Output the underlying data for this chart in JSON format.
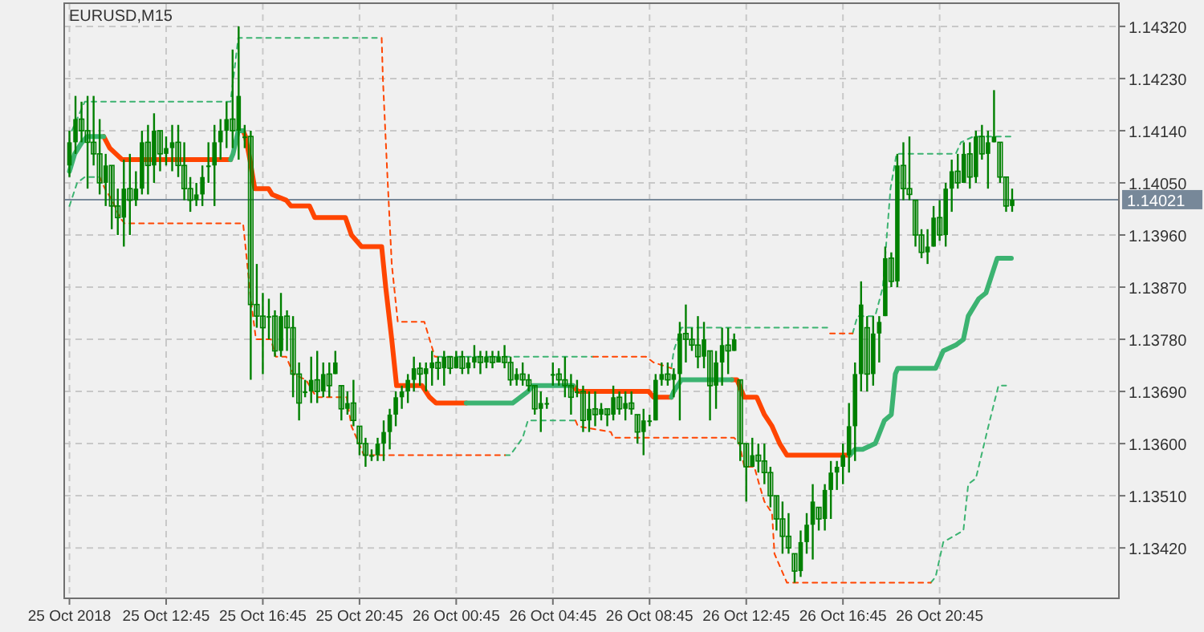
{
  "chart_data": {
    "type": "candlestick",
    "title": "EURUSD,M15",
    "color": "#008000",
    "x": [
      "2018-10-25T08:45",
      "2018-10-25T09:00",
      "2018-10-25T09:15",
      "2018-10-25T09:30",
      "2018-10-25T09:45",
      "2018-10-25T10:00",
      "2018-10-25T10:15",
      "2018-10-25T10:30",
      "2018-10-25T10:45",
      "2018-10-25T11:00",
      "2018-10-25T11:15",
      "2018-10-25T11:30",
      "2018-10-25T11:45",
      "2018-10-25T12:00",
      "2018-10-25T12:15",
      "2018-10-25T12:30",
      "2018-10-25T12:45",
      "2018-10-25T13:00",
      "2018-10-25T13:15",
      "2018-10-25T13:30",
      "2018-10-25T13:45",
      "2018-10-25T14:00",
      "2018-10-25T14:15",
      "2018-10-25T14:30",
      "2018-10-25T14:45",
      "2018-10-25T15:00",
      "2018-10-25T15:15",
      "2018-10-25T15:30",
      "2018-10-25T15:45",
      "2018-10-25T16:00",
      "2018-10-25T16:15",
      "2018-10-25T16:30",
      "2018-10-25T16:45",
      "2018-10-25T17:00",
      "2018-10-25T17:15",
      "2018-10-25T17:30",
      "2018-10-25T17:45",
      "2018-10-25T18:00",
      "2018-10-25T18:15",
      "2018-10-25T18:30",
      "2018-10-25T18:45",
      "2018-10-25T19:00",
      "2018-10-25T19:15",
      "2018-10-25T19:30",
      "2018-10-25T19:45",
      "2018-10-25T20:00",
      "2018-10-25T20:15",
      "2018-10-25T20:30",
      "2018-10-25T20:45",
      "2018-10-25T21:00",
      "2018-10-25T21:15",
      "2018-10-25T21:30",
      "2018-10-25T21:45",
      "2018-10-25T22:00",
      "2018-10-25T22:15",
      "2018-10-25T22:30",
      "2018-10-25T22:45",
      "2018-10-25T23:00",
      "2018-10-25T23:15",
      "2018-10-25T23:30",
      "2018-10-25T23:45",
      "2018-10-26T00:00",
      "2018-10-26T00:15",
      "2018-10-26T00:30",
      "2018-10-26T00:45",
      "2018-10-26T01:00",
      "2018-10-26T01:15",
      "2018-10-26T01:30",
      "2018-10-26T01:45",
      "2018-10-26T02:00",
      "2018-10-26T02:15",
      "2018-10-26T02:30",
      "2018-10-26T02:45",
      "2018-10-26T03:00",
      "2018-10-26T03:15",
      "2018-10-26T03:30",
      "2018-10-26T03:45",
      "2018-10-26T04:00",
      "2018-10-26T04:15",
      "2018-10-26T04:30",
      "2018-10-26T04:45",
      "2018-10-26T05:00",
      "2018-10-26T05:15",
      "2018-10-26T05:30",
      "2018-10-26T05:45",
      "2018-10-26T06:00",
      "2018-10-26T06:15",
      "2018-10-26T06:30",
      "2018-10-26T06:45",
      "2018-10-26T07:00",
      "2018-10-26T07:15",
      "2018-10-26T07:30",
      "2018-10-26T07:45",
      "2018-10-26T08:00",
      "2018-10-26T08:15",
      "2018-10-26T08:30",
      "2018-10-26T08:45",
      "2018-10-26T09:00",
      "2018-10-26T09:15",
      "2018-10-26T09:30",
      "2018-10-26T09:45",
      "2018-10-26T10:00",
      "2018-10-26T10:15",
      "2018-10-26T10:30",
      "2018-10-26T10:45",
      "2018-10-26T11:00",
      "2018-10-26T11:15",
      "2018-10-26T11:30",
      "2018-10-26T11:45",
      "2018-10-26T12:00",
      "2018-10-26T12:15",
      "2018-10-26T12:30",
      "2018-10-26T12:45",
      "2018-10-26T13:00",
      "2018-10-26T13:15",
      "2018-10-26T13:30",
      "2018-10-26T13:45",
      "2018-10-26T14:00",
      "2018-10-26T14:15",
      "2018-10-26T14:30",
      "2018-10-26T14:45",
      "2018-10-26T15:00",
      "2018-10-26T15:15",
      "2018-10-26T15:30",
      "2018-10-26T15:45",
      "2018-10-26T16:00",
      "2018-10-26T16:15",
      "2018-10-26T16:30",
      "2018-10-26T16:45",
      "2018-10-26T17:00",
      "2018-10-26T17:15",
      "2018-10-26T17:30",
      "2018-10-26T17:45",
      "2018-10-26T18:00",
      "2018-10-26T18:15",
      "2018-10-26T18:30",
      "2018-10-26T18:45",
      "2018-10-26T19:00",
      "2018-10-26T19:15",
      "2018-10-26T19:30",
      "2018-10-26T19:45",
      "2018-10-26T20:00",
      "2018-10-26T20:15",
      "2018-10-26T20:30",
      "2018-10-26T20:45",
      "2018-10-26T21:00",
      "2018-10-26T21:15",
      "2018-10-26T21:30",
      "2018-10-26T21:45",
      "2018-10-26T22:00",
      "2018-10-26T22:15",
      "2018-10-26T22:30",
      "2018-10-26T22:45",
      "2018-10-26T23:00",
      "2018-10-26T23:15",
      "2018-10-26T23:30",
      "2018-10-26T23:45"
    ],
    "ohlc": [
      [
        1.1408,
        1.1414,
        1.1406,
        1.1412
      ],
      [
        1.1412,
        1.142,
        1.141,
        1.1416
      ],
      [
        1.1416,
        1.1419,
        1.1412,
        1.1414
      ],
      [
        1.1414,
        1.142,
        1.1404,
        1.1412
      ],
      [
        1.1412,
        1.142,
        1.1408,
        1.141
      ],
      [
        1.141,
        1.1416,
        1.1403,
        1.1405
      ],
      [
        1.1405,
        1.141,
        1.1401,
        1.1408
      ],
      [
        1.1408,
        1.1408,
        1.1397,
        1.1401
      ],
      [
        1.1401,
        1.1404,
        1.1396,
        1.1399
      ],
      [
        1.1399,
        1.1409,
        1.1394,
        1.1404
      ],
      [
        1.1404,
        1.141,
        1.1396,
        1.1402
      ],
      [
        1.1402,
        1.1407,
        1.1401,
        1.1404
      ],
      [
        1.1404,
        1.1414,
        1.1403,
        1.1412
      ],
      [
        1.1412,
        1.1415,
        1.1403,
        1.1408
      ],
      [
        1.1408,
        1.1417,
        1.1405,
        1.1414
      ],
      [
        1.1414,
        1.1414,
        1.1407,
        1.141
      ],
      [
        1.141,
        1.1413,
        1.1408,
        1.1411
      ],
      [
        1.1411,
        1.1415,
        1.1407,
        1.1412
      ],
      [
        1.1412,
        1.1415,
        1.1406,
        1.1408
      ],
      [
        1.1408,
        1.1412,
        1.1402,
        1.1404
      ],
      [
        1.1404,
        1.1406,
        1.14,
        1.1402
      ],
      [
        1.1402,
        1.1405,
        1.1401,
        1.1403
      ],
      [
        1.1403,
        1.1408,
        1.1401,
        1.1406
      ],
      [
        1.1408,
        1.1412,
        1.1405,
        1.1408
      ],
      [
        1.1408,
        1.1415,
        1.1401,
        1.1412
      ],
      [
        1.1412,
        1.1416,
        1.1409,
        1.1414
      ],
      [
        1.1414,
        1.1419,
        1.1411,
        1.1416
      ],
      [
        1.1416,
        1.1428,
        1.1411,
        1.1414
      ],
      [
        1.1414,
        1.1432,
        1.1409,
        1.142
      ],
      [
        1.1413,
        1.1415,
        1.1411,
        1.1413
      ],
      [
        1.1413,
        1.1414,
        1.1371,
        1.1384
      ],
      [
        1.1384,
        1.1391,
        1.138,
        1.1382
      ],
      [
        1.1382,
        1.1386,
        1.1372,
        1.138
      ],
      [
        1.1382,
        1.1385,
        1.1378,
        1.1382
      ],
      [
        1.1382,
        1.1383,
        1.1375,
        1.1376
      ],
      [
        1.1376,
        1.1386,
        1.1375,
        1.1382
      ],
      [
        1.1382,
        1.1383,
        1.1376,
        1.138
      ],
      [
        1.138,
        1.1382,
        1.1368,
        1.1372
      ],
      [
        1.1372,
        1.1374,
        1.1364,
        1.1367
      ],
      [
        1.1369,
        1.1371,
        1.1368,
        1.1369
      ],
      [
        1.1369,
        1.1375,
        1.1367,
        1.1371
      ],
      [
        1.1371,
        1.1376,
        1.1367,
        1.1369
      ],
      [
        1.1369,
        1.1374,
        1.1368,
        1.1372
      ],
      [
        1.1372,
        1.1374,
        1.1368,
        1.137
      ],
      [
        1.1372,
        1.1376,
        1.1372,
        1.1374
      ],
      [
        1.137,
        1.137,
        1.1364,
        1.1366
      ],
      [
        1.1366,
        1.1369,
        1.1365,
        1.1367
      ],
      [
        1.1367,
        1.1371,
        1.1363,
        1.1364
      ],
      [
        1.1363,
        1.1363,
        1.1358,
        1.136
      ],
      [
        1.136,
        1.1361,
        1.1356,
        1.1358
      ],
      [
        1.1358,
        1.1359,
        1.1357,
        1.1358
      ],
      [
        1.1358,
        1.1361,
        1.1357,
        1.136
      ],
      [
        1.136,
        1.1364,
        1.1357,
        1.1362
      ],
      [
        1.1362,
        1.1366,
        1.1359,
        1.1365
      ],
      [
        1.1365,
        1.1369,
        1.1363,
        1.1368
      ],
      [
        1.1368,
        1.137,
        1.1366,
        1.1369
      ],
      [
        1.1369,
        1.1372,
        1.1367,
        1.1371
      ],
      [
        1.1371,
        1.1375,
        1.1369,
        1.1373
      ],
      [
        1.1373,
        1.1374,
        1.137,
        1.1372
      ],
      [
        1.1372,
        1.1374,
        1.1369,
        1.1373
      ],
      [
        1.1373,
        1.1376,
        1.137,
        1.1374
      ],
      [
        1.1374,
        1.1375,
        1.1371,
        1.1373
      ],
      [
        1.1373,
        1.1376,
        1.137,
        1.1375
      ],
      [
        1.1375,
        1.1375,
        1.1372,
        1.1373
      ],
      [
        1.1373,
        1.1376,
        1.1373,
        1.1375
      ],
      [
        1.1375,
        1.1376,
        1.1372,
        1.1373
      ],
      [
        1.1373,
        1.1375,
        1.1372,
        1.1374
      ],
      [
        1.1374,
        1.1377,
        1.1373,
        1.1375
      ],
      [
        1.1375,
        1.1376,
        1.1372,
        1.1374
      ],
      [
        1.1374,
        1.1376,
        1.1373,
        1.1375
      ],
      [
        1.1375,
        1.1376,
        1.1373,
        1.1374
      ],
      [
        1.1374,
        1.1376,
        1.1374,
        1.1375
      ],
      [
        1.1375,
        1.1377,
        1.1373,
        1.1374
      ],
      [
        1.1374,
        1.1375,
        1.137,
        1.1371
      ],
      [
        1.1371,
        1.1373,
        1.137,
        1.1372
      ],
      [
        1.1372,
        1.1374,
        1.137,
        1.1371
      ],
      [
        1.1371,
        1.1372,
        1.1369,
        1.137
      ],
      [
        1.137,
        1.137,
        1.1365,
        1.1366
      ],
      [
        1.1366,
        1.1369,
        1.1362,
        1.1367
      ],
      [
        1.1367,
        1.1368,
        1.1366,
        1.1367
      ],
      [
        1.1372,
        1.1374,
        1.137,
        1.1372
      ],
      [
        1.1372,
        1.1373,
        1.137,
        1.1371
      ],
      [
        1.1371,
        1.1375,
        1.1368,
        1.137
      ],
      [
        1.137,
        1.1372,
        1.1365,
        1.1368
      ],
      [
        1.1369,
        1.1371,
        1.1368,
        1.1369
      ],
      [
        1.1369,
        1.137,
        1.1362,
        1.1364
      ],
      [
        1.1364,
        1.1369,
        1.1362,
        1.1366
      ],
      [
        1.1366,
        1.1369,
        1.1363,
        1.1365
      ],
      [
        1.1365,
        1.1367,
        1.1364,
        1.1366
      ],
      [
        1.1366,
        1.1366,
        1.1363,
        1.1365
      ],
      [
        1.1365,
        1.137,
        1.1364,
        1.1368
      ],
      [
        1.1368,
        1.1369,
        1.1365,
        1.1366
      ],
      [
        1.1366,
        1.1369,
        1.1364,
        1.1367
      ],
      [
        1.1367,
        1.1369,
        1.1365,
        1.1366
      ],
      [
        1.1365,
        1.1365,
        1.136,
        1.1362
      ],
      [
        1.1362,
        1.1366,
        1.1358,
        1.1364
      ],
      [
        1.1364,
        1.1365,
        1.1363,
        1.1364
      ],
      [
        1.1364,
        1.1372,
        1.1364,
        1.1371
      ],
      [
        1.1371,
        1.1374,
        1.137,
        1.1372
      ],
      [
        1.1372,
        1.1374,
        1.137,
        1.1371
      ],
      [
        1.1371,
        1.1373,
        1.1368,
        1.1372
      ],
      [
        1.1372,
        1.1381,
        1.1364,
        1.1379
      ],
      [
        1.1379,
        1.1384,
        1.1374,
        1.1378
      ],
      [
        1.1378,
        1.138,
        1.1376,
        1.1377
      ],
      [
        1.1377,
        1.1382,
        1.1373,
        1.1375
      ],
      [
        1.1375,
        1.1381,
        1.1373,
        1.1378
      ],
      [
        1.1376,
        1.1376,
        1.1364,
        1.137
      ],
      [
        1.137,
        1.1376,
        1.1366,
        1.1374
      ],
      [
        1.1374,
        1.138,
        1.137,
        1.1377
      ],
      [
        1.1377,
        1.138,
        1.1372,
        1.1376
      ],
      [
        1.1376,
        1.1379,
        1.1376,
        1.1378
      ],
      [
        1.1371,
        1.1371,
        1.1357,
        1.136
      ],
      [
        1.136,
        1.136,
        1.135,
        1.1356
      ],
      [
        1.1356,
        1.1361,
        1.1356,
        1.1358
      ],
      [
        1.1358,
        1.136,
        1.1355,
        1.1357
      ],
      [
        1.1357,
        1.136,
        1.1353,
        1.1355
      ],
      [
        1.1355,
        1.1356,
        1.1349,
        1.1351
      ],
      [
        1.1351,
        1.1351,
        1.1345,
        1.1347
      ],
      [
        1.1347,
        1.135,
        1.1341,
        1.1344
      ],
      [
        1.1344,
        1.1348,
        1.1341,
        1.1342
      ],
      [
        1.1341,
        1.1341,
        1.1336,
        1.1338
      ],
      [
        1.1338,
        1.1345,
        1.1337,
        1.1343
      ],
      [
        1.1343,
        1.1348,
        1.1341,
        1.1346
      ],
      [
        1.1346,
        1.1353,
        1.134,
        1.135
      ],
      [
        1.1349,
        1.1349,
        1.1345,
        1.1347
      ],
      [
        1.1347,
        1.1353,
        1.1345,
        1.1352
      ],
      [
        1.1352,
        1.1357,
        1.1347,
        1.1355
      ],
      [
        1.1355,
        1.1357,
        1.1352,
        1.1356
      ],
      [
        1.1356,
        1.136,
        1.1353,
        1.1358
      ],
      [
        1.1358,
        1.1367,
        1.1355,
        1.1363
      ],
      [
        1.1363,
        1.1374,
        1.1357,
        1.1372
      ],
      [
        1.1372,
        1.1388,
        1.1369,
        1.1384
      ],
      [
        1.138,
        1.1382,
        1.1369,
        1.1372
      ],
      [
        1.1372,
        1.1382,
        1.137,
        1.1379
      ],
      [
        1.1379,
        1.1382,
        1.1374,
        1.1381
      ],
      [
        1.1382,
        1.1394,
        1.1382,
        1.1392
      ],
      [
        1.1392,
        1.1393,
        1.1387,
        1.1388
      ],
      [
        1.1388,
        1.141,
        1.1387,
        1.1408
      ],
      [
        1.1408,
        1.1412,
        1.1402,
        1.1404
      ],
      [
        1.1404,
        1.1413,
        1.1402,
        1.1403
      ],
      [
        1.1402,
        1.1402,
        1.1394,
        1.1396
      ],
      [
        1.1396,
        1.1397,
        1.1392,
        1.1393
      ],
      [
        1.1393,
        1.1397,
        1.1391,
        1.1394
      ],
      [
        1.1394,
        1.1401,
        1.1394,
        1.1399
      ],
      [
        1.1399,
        1.1402,
        1.1395,
        1.1396
      ],
      [
        1.1396,
        1.1405,
        1.1394,
        1.1404
      ],
      [
        1.1404,
        1.1409,
        1.14,
        1.1407
      ],
      [
        1.1407,
        1.141,
        1.1404,
        1.1405
      ],
      [
        1.1405,
        1.1412,
        1.1405,
        1.141
      ],
      [
        1.141,
        1.1412,
        1.1404,
        1.1406
      ],
      [
        1.1406,
        1.1414,
        1.1405,
        1.1413
      ],
      [
        1.1413,
        1.1415,
        1.1409,
        1.141
      ],
      [
        1.141,
        1.1414,
        1.1404,
        1.1412
      ],
      [
        1.1412,
        1.1421,
        1.1412,
        1.1413
      ],
      [
        1.1412,
        1.1412,
        1.1405,
        1.1406
      ],
      [
        1.1406,
        1.1406,
        1.14,
        1.1401
      ],
      [
        1.1401,
        1.1404,
        1.14,
        1.14021
      ]
    ],
    "series": [
      {
        "type": "line",
        "color": "#ff4500",
        "line_style": "solid",
        "x": [
          "2018-10-25T10:10",
          "2018-10-25T10:25",
          "2018-10-25T10:56",
          "2018-10-25T15:25",
          "2018-10-25T15:36",
          "2018-10-25T15:56",
          "2018-10-25T16:02",
          "2018-10-25T16:13",
          "2018-10-25T16:25",
          "2018-10-25T16:59",
          "2018-10-25T17:08",
          "2018-10-25T17:43",
          "2018-10-25T17:55",
          "2018-10-25T18:41",
          "2018-10-25T18:54",
          "2018-10-25T20:10",
          "2018-10-25T20:25",
          "2018-10-25T20:50",
          "2018-10-25T21:40",
          "2018-10-25T21:50",
          "2018-10-25T22:05",
          "2018-10-25T22:17",
          "2018-10-25T22:30",
          "2018-10-25T23:20",
          "2018-10-25T23:39",
          "2018-10-25T23:55",
          "2018-10-26T01:10",
          "2018-10-26T03:00",
          "2018-10-26T05:35",
          "2018-10-26T05:47",
          "2018-10-26T07:02",
          "2018-10-26T08:43",
          "2018-10-26T08:55",
          "2018-10-26T09:39",
          "2018-10-26T11:00",
          "2018-10-26T12:09",
          "2018-10-26T12:22",
          "2018-10-26T12:40",
          "2018-10-26T13:11",
          "2018-10-26T13:30",
          "2018-10-26T13:49",
          "2018-10-26T14:08",
          "2018-10-26T14:26",
          "2018-10-26T16:07",
          "2018-10-26T17:02"
        ],
        "values": [
          1.1413,
          1.1411,
          1.1409,
          1.1409,
          null,
          1.1414,
          1.1413,
          1.1409,
          1.1404,
          1.1404,
          1.1403,
          1.1402,
          1.1401,
          1.1401,
          1.1399,
          1.1399,
          1.1396,
          1.1394,
          1.1394,
          1.1387,
          1.1378,
          1.137,
          1.137,
          1.137,
          1.1368,
          1.1367,
          1.1367,
          null,
          1.137,
          1.1369,
          1.1369,
          1.1369,
          1.1368,
          1.1368,
          null,
          1.1371,
          1.1371,
          1.1368,
          1.1368,
          1.1365,
          1.1363,
          1.136,
          1.1358,
          1.1358,
          1.1358
        ]
      },
      {
        "type": "line",
        "color": "#3cb371",
        "line_style": "solid",
        "x": [
          "2018-10-25T08:45",
          "2018-10-25T08:58",
          "2018-10-25T09:16",
          "2018-10-25T09:29",
          "2018-10-25T10:10",
          "2018-10-25T12:00",
          "2018-10-25T15:25",
          "2018-10-25T15:31",
          "2018-10-25T15:44",
          "2018-10-25T15:56",
          "2018-10-25T20:00",
          "2018-10-26T01:10",
          "2018-10-26T03:05",
          "2018-10-26T03:24",
          "2018-10-26T03:43",
          "2018-10-26T03:55",
          "2018-10-26T05:35",
          "2018-10-26T07:00",
          "2018-10-26T09:39",
          "2018-10-26T09:45",
          "2018-10-26T10:04",
          "2018-10-26T12:09",
          "2018-10-26T14:00",
          "2018-10-26T17:02",
          "2018-10-26T17:15",
          "2018-10-26T17:34",
          "2018-10-26T18:05",
          "2018-10-26T18:11",
          "2018-10-26T18:28",
          "2018-10-26T18:45",
          "2018-10-26T18:55",
          "2018-10-26T19:01",
          "2018-10-26T20:35",
          "2018-10-26T20:54",
          "2018-10-26T21:25",
          "2018-10-26T21:44",
          "2018-10-26T21:56",
          "2018-10-26T22:22",
          "2018-10-26T22:40",
          "2018-10-26T23:08",
          "2018-10-26T23:43"
        ],
        "values": [
          1.1407,
          1.141,
          1.1412,
          1.1413,
          1.1413,
          null,
          1.1409,
          1.141,
          1.1414,
          1.1414,
          null,
          1.1367,
          1.1367,
          1.1368,
          1.1369,
          1.137,
          1.137,
          null,
          1.1368,
          1.1369,
          1.1371,
          1.1371,
          null,
          1.1358,
          1.1359,
          1.1359,
          1.136,
          1.1361,
          1.1364,
          1.1365,
          1.1372,
          1.1373,
          1.1373,
          1.1376,
          1.1377,
          1.1378,
          1.1382,
          1.1385,
          1.1386,
          1.1392,
          1.1392
        ]
      },
      {
        "type": "line",
        "color": "#3cb371",
        "line_style": "dashed",
        "x": [
          "2018-10-25T08:51",
          "2018-10-25T09:23",
          "2018-10-25T15:25",
          "2018-10-25T15:44",
          "2018-10-25T21:40",
          "2018-10-25T23:00",
          "2018-10-25T23:58",
          "2018-10-26T06:25",
          "2018-10-26T07:00",
          "2018-10-26T09:39",
          "2018-10-26T09:45",
          "2018-10-26T10:04",
          "2018-10-26T16:13",
          "2018-10-26T16:36",
          "2018-10-26T17:09",
          "2018-10-26T17:21",
          "2018-10-26T18:05",
          "2018-10-26T18:24",
          "2018-10-26T18:43",
          "2018-10-26T18:58",
          "2018-10-26T21:25",
          "2018-10-26T21:38",
          "2018-10-26T22:09",
          "2018-10-26T23:43"
        ],
        "values": [
          1.1414,
          1.1419,
          1.1419,
          1.143,
          1.143,
          null,
          1.1375,
          1.1375,
          null,
          1.1373,
          1.1376,
          1.138,
          1.138,
          null,
          1.1379,
          1.1382,
          1.1382,
          1.1387,
          1.1404,
          1.141,
          1.141,
          1.1412,
          1.1413,
          1.1413
        ]
      },
      {
        "type": "line",
        "color": "#ff4500",
        "line_style": "dashed",
        "x": [
          "2018-10-25T21:40",
          "2018-10-25T21:43",
          "2018-10-25T21:53",
          "2018-10-25T22:05",
          "2018-10-25T22:20",
          "2018-10-25T23:26",
          "2018-10-25T23:52",
          "2018-10-25T23:58",
          "2018-10-26T03:00",
          "2018-10-26T06:25",
          "2018-10-26T08:36",
          "2018-10-26T08:55",
          "2018-10-26T09:39",
          "2018-10-26T13:00",
          "2018-10-26T16:13",
          "2018-10-26T17:09"
        ],
        "values": [
          1.143,
          1.1423,
          1.1408,
          1.1391,
          1.1381,
          1.1381,
          1.1375,
          1.1375,
          null,
          1.1375,
          1.1375,
          1.1374,
          1.1373,
          null,
          1.1379,
          1.1379
        ]
      },
      {
        "type": "line",
        "color": "#3cb371",
        "line_style": "dashed",
        "x": [
          "2018-10-25T08:45",
          "2018-10-25T09:04",
          "2018-10-25T09:23",
          "2018-10-25T10:00",
          "2018-10-25T12:00",
          "2018-10-26T02:46",
          "2018-10-26T02:59",
          "2018-10-26T03:30",
          "2018-10-26T03:43",
          "2018-10-26T03:55",
          "2018-10-26T05:41",
          "2018-10-26T11:00",
          "2018-10-26T20:23",
          "2018-10-26T20:35",
          "2018-10-26T20:54",
          "2018-10-26T21:44",
          "2018-10-26T21:56",
          "2018-10-26T22:15",
          "2018-10-26T22:46",
          "2018-10-26T23:11",
          "2018-10-26T23:30"
        ],
        "values": [
          1.1401,
          1.1405,
          1.1406,
          1.1406,
          null,
          1.1358,
          1.1358,
          1.1361,
          1.1364,
          1.1364,
          1.1364,
          null,
          1.1336,
          1.1337,
          1.1343,
          1.1345,
          1.1353,
          1.1354,
          1.1363,
          1.137,
          1.137
        ]
      },
      {
        "type": "line",
        "color": "#ff4500",
        "line_style": "dashed",
        "x": [
          "2018-10-25T10:00",
          "2018-10-25T10:13",
          "2018-10-25T10:31",
          "2018-10-25T10:50",
          "2018-10-25T11:02",
          "2018-10-25T15:56",
          "2018-10-25T16:02",
          "2018-10-25T16:15",
          "2018-10-25T16:28",
          "2018-10-25T17:05",
          "2018-10-25T17:17",
          "2018-10-25T17:43",
          "2018-10-25T18:01",
          "2018-10-25T18:32",
          "2018-10-25T18:58",
          "2018-10-25T20:13",
          "2018-10-25T20:25",
          "2018-10-25T20:44",
          "2018-10-25T20:56",
          "2018-10-26T02:46",
          "2018-10-26T04:00",
          "2018-10-26T05:41",
          "2018-10-26T05:47",
          "2018-10-26T07:09",
          "2018-10-26T07:15",
          "2018-10-26T12:15",
          "2018-10-26T12:28",
          "2018-10-26T12:40",
          "2018-10-26T13:05",
          "2018-10-26T13:17",
          "2018-10-26T13:30",
          "2018-10-26T13:49",
          "2018-10-26T13:55",
          "2018-10-26T14:26",
          "2018-10-26T20:23"
        ],
        "values": [
          1.1406,
          1.1404,
          1.1402,
          1.1399,
          1.1398,
          1.1398,
          1.1394,
          1.1385,
          1.1378,
          1.1378,
          1.1375,
          1.1375,
          1.1372,
          1.1371,
          1.1368,
          1.1368,
          1.1363,
          1.136,
          1.1358,
          1.1358,
          null,
          1.1364,
          1.1363,
          1.1362,
          1.1361,
          1.1361,
          1.136,
          1.1356,
          1.1356,
          1.1353,
          1.135,
          1.1348,
          1.1341,
          1.1336,
          1.1336
        ]
      }
    ],
    "xlim": [
      "2018-10-25T08:32",
      "2018-10-27T04:10"
    ],
    "ylim": [
      1.13333,
      1.1436
    ],
    "xticks": [
      {
        "value": "2018-10-25T08:45",
        "label": "25 Oct 2018"
      },
      {
        "value": "2018-10-25T12:45",
        "label": "25 Oct 12:45"
      },
      {
        "value": "2018-10-25T16:45",
        "label": "25 Oct 16:45"
      },
      {
        "value": "2018-10-25T20:45",
        "label": "25 Oct 20:45"
      },
      {
        "value": "2018-10-26T00:45",
        "label": "26 Oct 00:45"
      },
      {
        "value": "2018-10-26T04:45",
        "label": "26 Oct 04:45"
      },
      {
        "value": "2018-10-26T08:45",
        "label": "26 Oct 08:45"
      },
      {
        "value": "2018-10-26T12:45",
        "label": "26 Oct 12:45"
      },
      {
        "value": "2018-10-26T16:45",
        "label": "26 Oct 16:45"
      },
      {
        "value": "2018-10-26T20:45",
        "label": "26 Oct 20:45"
      }
    ],
    "yticks": [
      {
        "value": 1.1342,
        "label": "1.13420"
      },
      {
        "value": 1.1351,
        "label": "1.13510"
      },
      {
        "value": 1.136,
        "label": "1.13600"
      },
      {
        "value": 1.1369,
        "label": "1.13690"
      },
      {
        "value": 1.1378,
        "label": "1.13780"
      },
      {
        "value": 1.1387,
        "label": "1.13870"
      },
      {
        "value": 1.1396,
        "label": "1.13960"
      },
      {
        "value": 1.1405,
        "label": "1.14050"
      },
      {
        "value": 1.1414,
        "label": "1.14140"
      },
      {
        "value": 1.1423,
        "label": "1.14230"
      },
      {
        "value": 1.1432,
        "label": "1.14320"
      }
    ],
    "ref_lines": [
      {
        "axis": "y",
        "value": 1.14021,
        "label": "1.14021",
        "color": "#778899"
      }
    ],
    "grid": true
  }
}
